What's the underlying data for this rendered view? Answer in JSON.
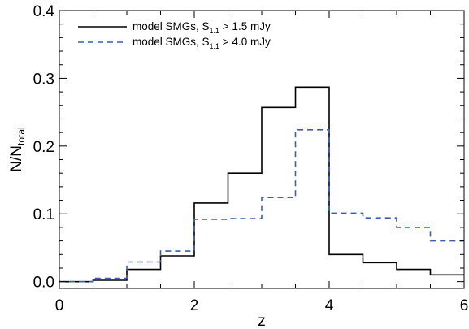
{
  "chart_data": {
    "type": "line",
    "step": true,
    "xlabel": "z",
    "ylabel": {
      "main": "N/N",
      "sub": "total"
    },
    "xlim": [
      0,
      6
    ],
    "ylim": [
      -0.01,
      0.4
    ],
    "xticks": [
      0,
      2,
      4,
      6
    ],
    "xtick_labels": [
      "0",
      "2",
      "4",
      "6"
    ],
    "yticks": [
      0.0,
      0.1,
      0.2,
      0.3,
      0.4
    ],
    "ytick_labels": [
      "0.0",
      "0.1",
      "0.2",
      "0.3",
      "0.4"
    ],
    "grid": false,
    "legend_position": "top-left",
    "bin_edges": [
      0,
      0.5,
      1.0,
      1.5,
      2.0,
      2.5,
      3.0,
      3.5,
      4.0,
      4.5,
      5.0,
      5.5,
      6.0
    ],
    "series": [
      {
        "name": {
          "pre": "model SMGs, S",
          "sub": "1.1",
          "post": " > 1.5 mJy"
        },
        "color": "#000000",
        "dash": "solid",
        "values": [
          0.0,
          0.002,
          0.018,
          0.038,
          0.116,
          0.16,
          0.257,
          0.287,
          0.04,
          0.028,
          0.018,
          0.01
        ]
      },
      {
        "name": {
          "pre": "model SMGs, S",
          "sub": "1.1",
          "post": " > 4.0 mJy"
        },
        "color": "#3a5fa8",
        "dash": "dashed",
        "values": [
          0.0,
          0.005,
          0.029,
          0.045,
          0.092,
          0.093,
          0.124,
          0.224,
          0.101,
          0.094,
          0.08,
          0.06
        ]
      }
    ]
  }
}
